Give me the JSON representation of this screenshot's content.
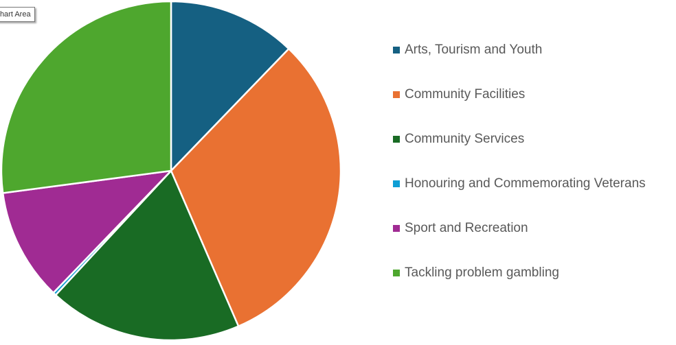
{
  "tooltip": "Chart Area",
  "chart_data": {
    "type": "pie",
    "start_angle": "12 o'clock, clockwise",
    "legend_position": "right",
    "categories": [
      "Arts, Tourism and Youth",
      "Community Facilities",
      "Community Services",
      "Honouring and Commemorating Veterans",
      "Sport and Recreation",
      "Tackling problem gambling"
    ],
    "values": [
      12.2,
      31.3,
      18.4,
      0.3,
      10.7,
      27.1
    ],
    "colors": [
      "#156082",
      "#E97132",
      "#196B24",
      "#0F9ED5",
      "#A02B93",
      "#4EA72E"
    ]
  }
}
